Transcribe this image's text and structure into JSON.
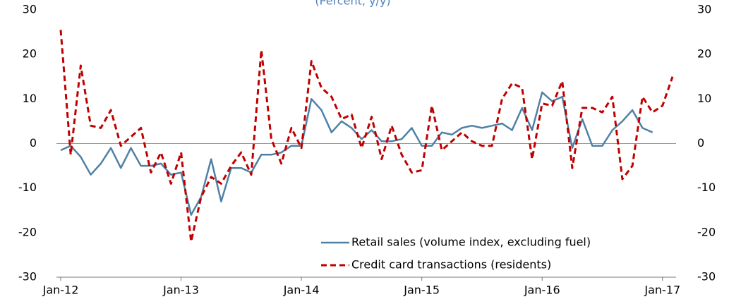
{
  "chart_data": {
    "type": "line",
    "subtitle": "(Percent, y/y)",
    "categories": [
      "Jan-12",
      null,
      null,
      null,
      null,
      null,
      null,
      null,
      null,
      null,
      null,
      null,
      "Jan-13",
      null,
      null,
      null,
      null,
      null,
      null,
      null,
      null,
      null,
      null,
      null,
      "Jan-14",
      null,
      null,
      null,
      null,
      null,
      null,
      null,
      null,
      null,
      null,
      null,
      "Jan-15",
      null,
      null,
      null,
      null,
      null,
      null,
      null,
      null,
      null,
      null,
      null,
      "Jan-16",
      null,
      null,
      null,
      null,
      null,
      null,
      null,
      null,
      null,
      null,
      null,
      "Jan-17",
      null
    ],
    "series": [
      {
        "name": "Retail sales (volume index, excluding fuel)",
        "color": "#4f81a6",
        "dash": "solid",
        "values": [
          -1.5,
          -0.5,
          -3,
          -7,
          -4.5,
          -1,
          -5.5,
          -1,
          -5,
          -5,
          -4.5,
          -7,
          -6.5,
          -16,
          -12,
          -3.5,
          -13,
          -5.5,
          -5.5,
          -6.5,
          -2.5,
          -2.5,
          -2,
          -0.5,
          -0.5,
          10,
          7.5,
          2.5,
          5,
          3.5,
          1,
          3,
          0.5,
          0.5,
          1,
          3.5,
          -0.5,
          -0.5,
          2.5,
          2,
          3.5,
          4,
          3.5,
          4,
          4.5,
          3,
          8,
          3,
          11.5,
          9.5,
          10.5,
          -1,
          5.5,
          -0.5,
          -0.5,
          3,
          5,
          7.5,
          3.5,
          2.5,
          null,
          null
        ]
      },
      {
        "name": "Credit card transactions (residents)",
        "color": "#c00000",
        "dash": "dashed",
        "values": [
          25.5,
          -2.5,
          17.5,
          4,
          3.5,
          7.5,
          -0.5,
          1.5,
          3.5,
          -6.5,
          -2,
          -9,
          -2,
          -22,
          -12,
          -7.5,
          -9,
          -5,
          -2,
          -7,
          21,
          1,
          -4.5,
          3.5,
          -1,
          18.5,
          12.5,
          10.5,
          5.5,
          6.5,
          -1,
          6,
          -3.5,
          4,
          -2.5,
          -6.5,
          -6,
          8.5,
          -1.5,
          0.5,
          2.5,
          0.5,
          -0.5,
          -0.5,
          10,
          13.5,
          12.5,
          -3.5,
          9,
          8.5,
          14,
          -5.5,
          8,
          8,
          7,
          10.5,
          -8,
          -5,
          10.5,
          7,
          8.5,
          15
        ]
      }
    ],
    "ylim": [
      -30,
      30
    ],
    "yticks": [
      -30,
      -20,
      -10,
      0,
      10,
      20,
      30
    ],
    "y2lim": [
      -30,
      30
    ],
    "y2ticks": [
      -30,
      -20,
      -10,
      0,
      10,
      20,
      30
    ],
    "legend": "lower right"
  }
}
